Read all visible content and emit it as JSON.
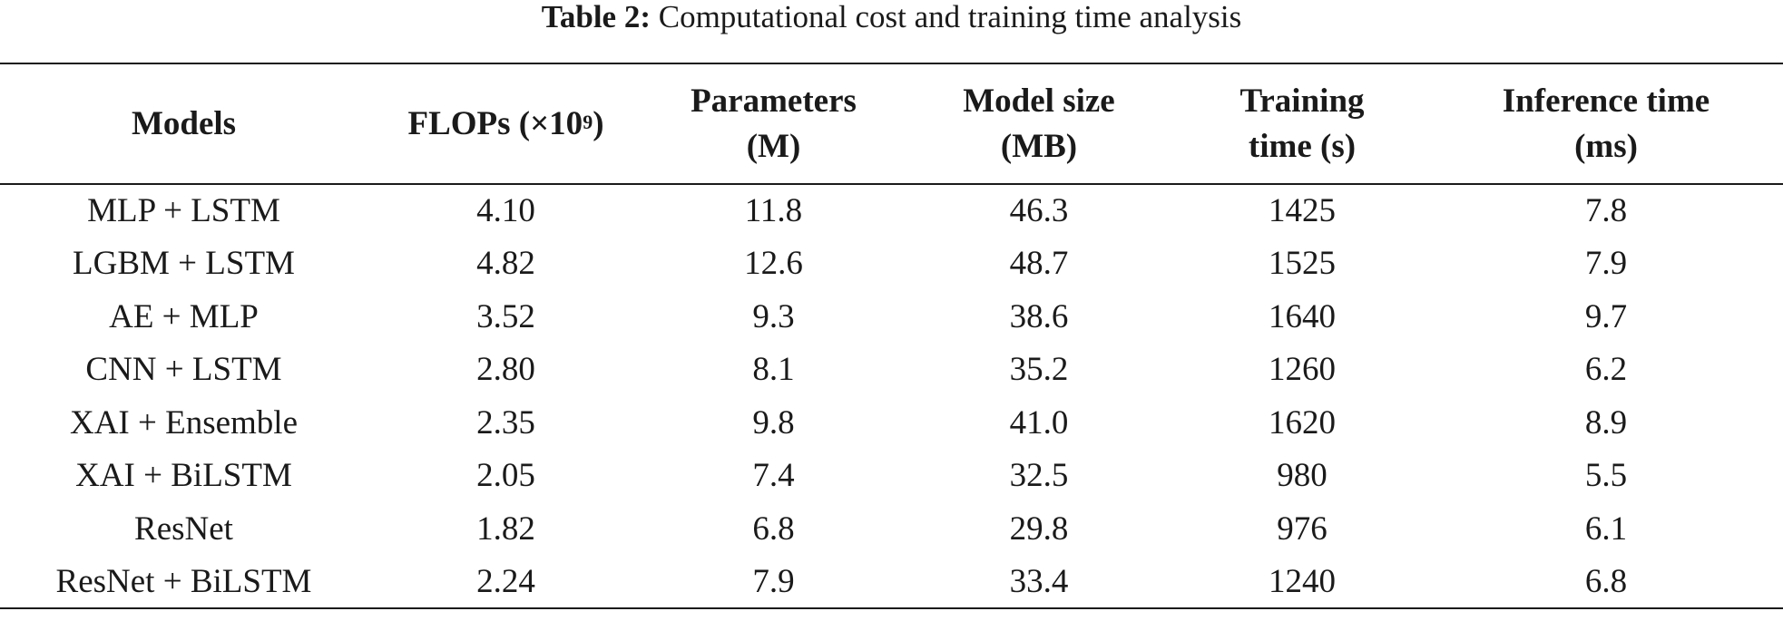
{
  "caption": {
    "label": "Table 2:",
    "text": "Computational cost and training time analysis"
  },
  "table": {
    "headers": {
      "models": [
        "Models"
      ],
      "flops": {
        "prefix": "FLOPs (×10",
        "exponent": "9",
        "suffix": ")"
      },
      "parameters": [
        "Parameters",
        "(M)"
      ],
      "model_size": [
        "Model size",
        "(MB)"
      ],
      "training_time": [
        "Training",
        "time (s)"
      ],
      "inference_time": [
        "Inference time",
        "(ms)"
      ]
    },
    "rows": [
      [
        "MLP + LSTM",
        "4.10",
        "11.8",
        "46.3",
        "1425",
        "7.8"
      ],
      [
        "LGBM + LSTM",
        "4.82",
        "12.6",
        "48.7",
        "1525",
        "7.9"
      ],
      [
        "AE + MLP",
        "3.52",
        "9.3",
        "38.6",
        "1640",
        "9.7"
      ],
      [
        "CNN + LSTM",
        "2.80",
        "8.1",
        "35.2",
        "1260",
        "6.2"
      ],
      [
        "XAI + Ensemble",
        "2.35",
        "9.8",
        "41.0",
        "1620",
        "8.9"
      ],
      [
        "XAI + BiLSTM",
        "2.05",
        "7.4",
        "32.5",
        "980",
        "5.5"
      ],
      [
        "ResNet",
        "1.82",
        "6.8",
        "29.8",
        "976",
        "6.1"
      ],
      [
        "ResNet + BiLSTM",
        "2.24",
        "7.9",
        "33.4",
        "1240",
        "6.8"
      ]
    ]
  }
}
